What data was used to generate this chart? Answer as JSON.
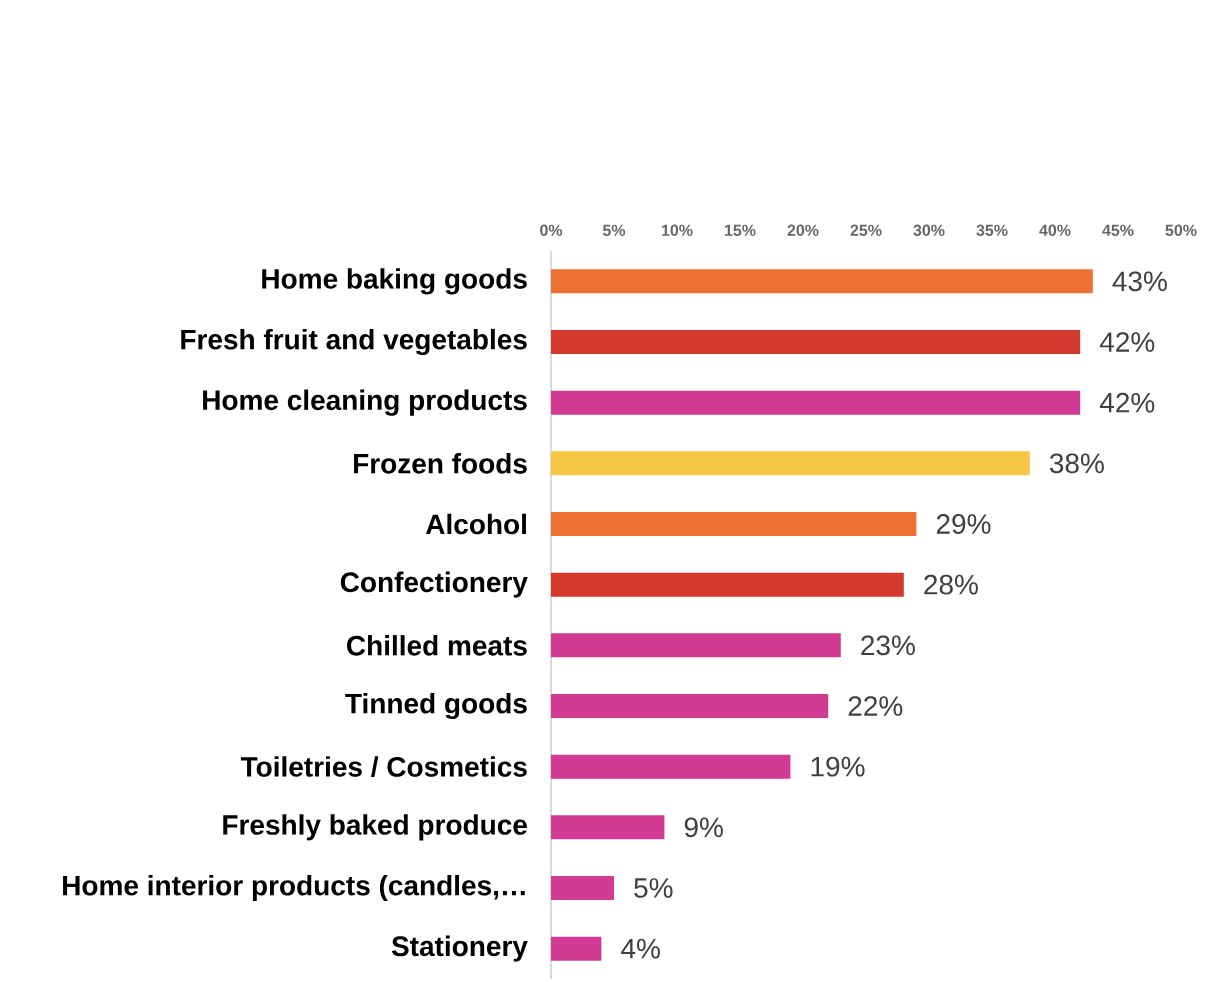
{
  "chart_data": {
    "type": "bar",
    "orientation": "horizontal",
    "categories": [
      "Home baking goods",
      "Fresh fruit and vegetables",
      "Home cleaning products",
      "Frozen foods",
      "Alcohol",
      "Confectionery",
      "Chilled meats",
      "Tinned goods",
      "Toiletries / Cosmetics",
      "Freshly baked produce",
      "Home interior products (candles,…",
      "Stationery"
    ],
    "values": [
      43,
      42,
      42,
      38,
      29,
      28,
      23,
      22,
      19,
      9,
      5,
      4
    ],
    "colors": [
      "#ed7232",
      "#d2382c",
      "#d23a94",
      "#f6c644",
      "#ed7232",
      "#d2382c",
      "#d23a94",
      "#d23a94",
      "#d23a94",
      "#d23a94",
      "#d23a94",
      "#d23a94"
    ],
    "value_labels": [
      "43%",
      "42%",
      "42%",
      "38%",
      "29%",
      "28%",
      "23%",
      "22%",
      "19%",
      "9%",
      "5%",
      "4%"
    ],
    "xlim": [
      0,
      50
    ],
    "xticks": [
      {
        "value": 0,
        "label": "0%"
      },
      {
        "value": 5,
        "label": "5%"
      },
      {
        "value": 10,
        "label": "10%"
      },
      {
        "value": 15,
        "label": "15%"
      },
      {
        "value": 20,
        "label": "20%"
      },
      {
        "value": 25,
        "label": "25%"
      },
      {
        "value": 30,
        "label": "30%"
      },
      {
        "value": 35,
        "label": "35%"
      },
      {
        "value": 40,
        "label": "40%"
      },
      {
        "value": 45,
        "label": "45%"
      },
      {
        "value": 50,
        "label": "50%"
      }
    ]
  }
}
